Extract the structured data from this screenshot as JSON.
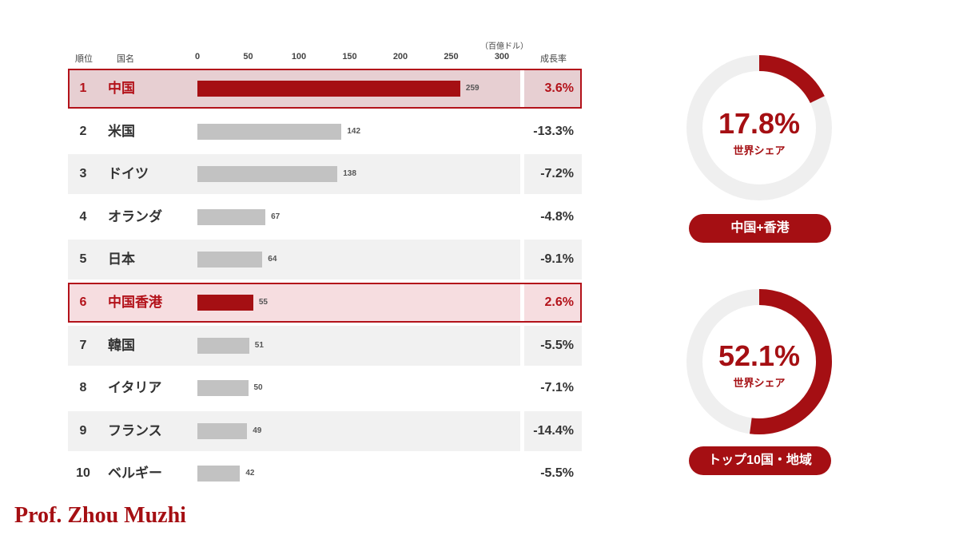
{
  "headers": {
    "rank": "順位",
    "country": "国名",
    "unit": "（百億ドル）",
    "growth": "成長率"
  },
  "chart_data": {
    "type": "bar",
    "orientation": "horizontal",
    "x_ticks": [
      "0",
      "50",
      "100",
      "150",
      "200",
      "250",
      "300"
    ],
    "xlim": [
      0,
      300
    ],
    "unit": "（百億ドル）",
    "rows": [
      {
        "rank": "1",
        "name": "中国",
        "value": 259,
        "value_label": "259",
        "growth": "3.6%",
        "highlight": "strong"
      },
      {
        "rank": "2",
        "name": "米国",
        "value": 142,
        "value_label": "142",
        "growth": "-13.3%",
        "highlight": ""
      },
      {
        "rank": "3",
        "name": "ドイツ",
        "value": 138,
        "value_label": "138",
        "growth": "-7.2%",
        "highlight": ""
      },
      {
        "rank": "4",
        "name": "オランダ",
        "value": 67,
        "value_label": "67",
        "growth": "-4.8%",
        "highlight": ""
      },
      {
        "rank": "5",
        "name": "日本",
        "value": 64,
        "value_label": "64",
        "growth": "-9.1%",
        "highlight": ""
      },
      {
        "rank": "6",
        "name": "中国香港",
        "value": 55,
        "value_label": "55",
        "growth": "2.6%",
        "highlight": "light"
      },
      {
        "rank": "7",
        "name": "韓国",
        "value": 51,
        "value_label": "51",
        "growth": "-5.5%",
        "highlight": ""
      },
      {
        "rank": "8",
        "name": "イタリア",
        "value": 50,
        "value_label": "50",
        "growth": "-7.1%",
        "highlight": ""
      },
      {
        "rank": "9",
        "name": "フランス",
        "value": 49,
        "value_label": "49",
        "growth": "-14.4%",
        "highlight": ""
      },
      {
        "rank": "10",
        "name": "ベルギー",
        "value": 42,
        "value_label": "42",
        "growth": "-5.5%",
        "highlight": ""
      }
    ],
    "donuts": [
      {
        "value": 17.8,
        "value_label": "17.8%",
        "sublabel": "世界シェア",
        "pill": "中国+香港"
      },
      {
        "value": 52.1,
        "value_label": "52.1%",
        "sublabel": "世界シェア",
        "pill": "トップ10国・地域"
      }
    ]
  },
  "colors": {
    "accent": "#a50f13",
    "bar_gray": "#c2c2c2",
    "track": "#efefef"
  },
  "credit": "Prof. Zhou Muzhi"
}
